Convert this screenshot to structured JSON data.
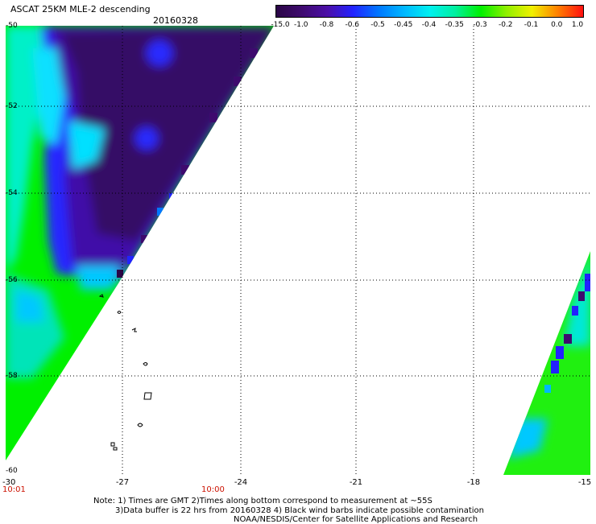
{
  "header": {
    "title": "ASCAT 25KM MLE-2 descending",
    "date": "20160328"
  },
  "colorbar": {
    "labels": [
      "-15.0",
      "-1.0",
      "-0.8",
      "-0.6",
      "-0.5",
      "-0.45",
      "-0.4",
      "-0.35",
      "-0.3",
      "-0.2",
      "-0.1",
      "0.0",
      "1.0"
    ],
    "colors": [
      "#2a0646",
      "#3e0a6e",
      "#4b0fa8",
      "#2222ff",
      "#0077ff",
      "#00b8ff",
      "#00f0f0",
      "#00f0a0",
      "#00f000",
      "#90f000",
      "#f0f000",
      "#ff8000",
      "#ff1010"
    ]
  },
  "axes": {
    "y_labels": [
      "-50",
      "-52",
      "-54",
      "-56",
      "-58",
      "-60"
    ],
    "x_labels": [
      "-27",
      "-24",
      "-21",
      "-18",
      "-15"
    ],
    "corner_left_x": "-30",
    "time_left": "10:01",
    "time_mid": "10:00"
  },
  "notes": {
    "line1": "Note: 1) Times are GMT 2)Times along bottom correspond to measurement at ~55S",
    "line2": "3)Data buffer is 22 hrs from 20160328 4) Black wind barbs indicate possible contamination",
    "line3": "NOAA/NESDIS/Center for Satellite Applications and Research"
  }
}
